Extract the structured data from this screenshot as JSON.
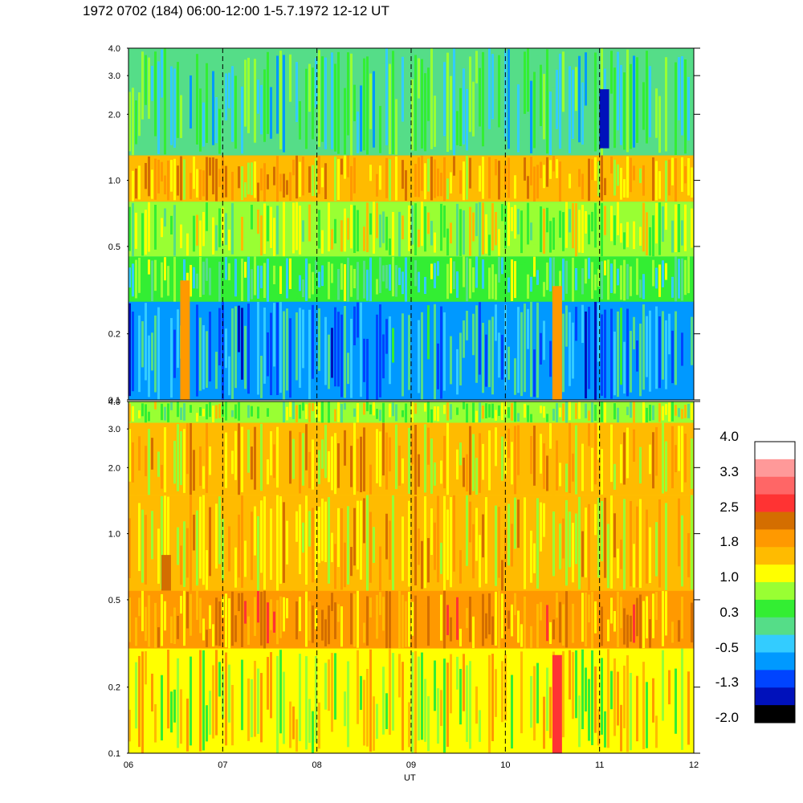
{
  "title": "1972 0702 (184) 06:00-12:00 1-5.7.1972  12-12 UT",
  "chart_data": [
    {
      "type": "heatmap",
      "panel": "upper",
      "x_range": [
        6,
        12
      ],
      "x_ticks": [
        "06",
        "07",
        "08",
        "09",
        "10",
        "11",
        "12"
      ],
      "y_scale": "log",
      "y_range": [
        0.1,
        4.0
      ],
      "y_ticks": [
        "0.1",
        "0.2",
        "0.5",
        "1.0",
        "2.0",
        "3.0",
        "4.0"
      ],
      "bands": [
        {
          "y_range": [
            0.1,
            0.28
          ],
          "value": -0.5
        },
        {
          "y_range": [
            0.28,
            0.45
          ],
          "value": 0.3
        },
        {
          "y_range": [
            0.45,
            0.8
          ],
          "value": 0.8
        },
        {
          "y_range": [
            0.8,
            1.3
          ],
          "value": 1.6
        },
        {
          "y_range": [
            1.3,
            4.0
          ],
          "value": 0.2
        }
      ],
      "features": [
        {
          "x": 6.6,
          "y_range": [
            0.1,
            0.35
          ],
          "value": 1.8
        },
        {
          "x": 10.55,
          "y_range": [
            0.1,
            0.33
          ],
          "value": 1.8
        },
        {
          "x": 11.05,
          "y_range": [
            1.4,
            2.6
          ],
          "value": -1.3
        }
      ]
    },
    {
      "type": "heatmap",
      "panel": "lower",
      "x_range": [
        6,
        12
      ],
      "x_ticks": [
        "06",
        "07",
        "08",
        "09",
        "10",
        "11",
        "12"
      ],
      "xlabel": "UT",
      "y_scale": "log",
      "y_range": [
        0.1,
        4.0
      ],
      "y_ticks": [
        "0.1",
        "0.2",
        "0.5",
        "1.0",
        "2.0",
        "3.0",
        "4.0"
      ],
      "bands": [
        {
          "y_range": [
            0.1,
            0.3
          ],
          "value": 1.2
        },
        {
          "y_range": [
            0.3,
            0.55
          ],
          "value": 1.8
        },
        {
          "y_range": [
            0.55,
            1.5
          ],
          "value": 1.5
        },
        {
          "y_range": [
            1.5,
            3.2
          ],
          "value": 1.5
        },
        {
          "y_range": [
            3.2,
            4.0
          ],
          "value": 0.8
        }
      ],
      "features": [
        {
          "x": 10.55,
          "y_range": [
            0.1,
            0.28
          ],
          "value": 2.6
        },
        {
          "x": 6.4,
          "y_range": [
            0.55,
            0.8
          ],
          "value": 2.2
        }
      ]
    }
  ],
  "colorbar": {
    "labels": [
      "4.0",
      "3.3",
      "2.5",
      "1.8",
      "1.0",
      "0.3",
      "-0.5",
      "-1.3",
      "-2.0"
    ],
    "colors": [
      "#ffffff",
      "#ff9999",
      "#ff6666",
      "#ff3333",
      "#d46e00",
      "#ff9900",
      "#ffbb00",
      "#ffff00",
      "#99ff33",
      "#33ee33",
      "#55dd88",
      "#33ccff",
      "#0099ff",
      "#0044ff",
      "#0011bb",
      "#000000"
    ]
  }
}
